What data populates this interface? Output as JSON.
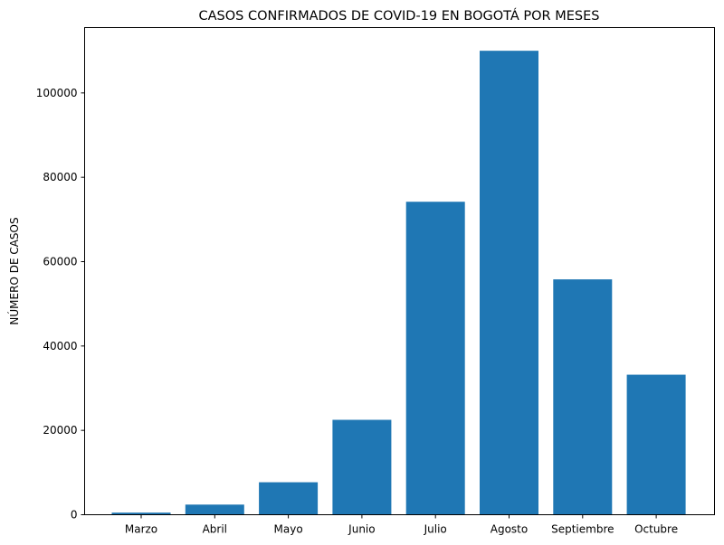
{
  "chart_data": {
    "type": "bar",
    "title": "CASOS CONFIRMADOS DE COVID-19 EN BOGOTÁ POR MESES",
    "xlabel": "",
    "ylabel": "NÚMERO DE CASOS",
    "categories": [
      "Marzo",
      "Abril",
      "Mayo",
      "Junio",
      "Julio",
      "Agosto",
      "Septiembre",
      "Octubre"
    ],
    "values": [
      500,
      2400,
      7700,
      22500,
      74200,
      110000,
      55800,
      33200
    ],
    "ylim": [
      0,
      115500
    ],
    "yticks": [
      0,
      20000,
      40000,
      60000,
      80000,
      100000
    ],
    "ytick_labels": [
      "0",
      "20000",
      "40000",
      "60000",
      "80000",
      "100000"
    ],
    "bar_color": "#1f77b4",
    "grid": false
  }
}
